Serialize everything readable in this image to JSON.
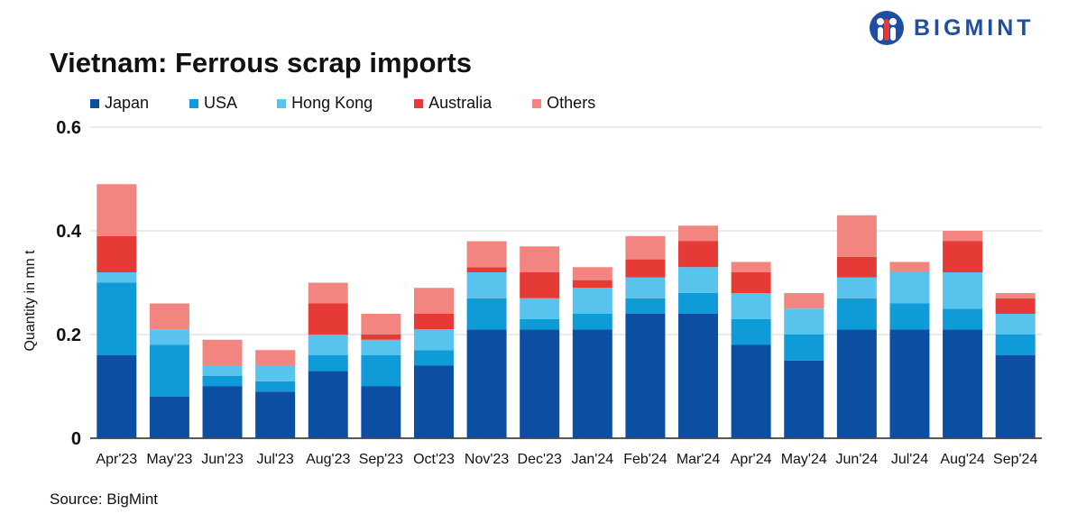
{
  "title": "Vietnam: Ferrous scrap imports",
  "brand": {
    "name": "BIGMINT",
    "color": "#1f4ea3"
  },
  "source": "Source: BigMint",
  "chart_data": {
    "type": "bar",
    "stacked": true,
    "categories": [
      "Apr'23",
      "May'23",
      "Jun'23",
      "Jul'23",
      "Aug'23",
      "Sep'23",
      "Oct'23",
      "Nov'23",
      "Dec'23",
      "Jan'24",
      "Feb'24",
      "Mar'24",
      "Apr'24",
      "May'24",
      "Jun'24",
      "Jul'24",
      "Aug'24",
      "Sep'24"
    ],
    "series": [
      {
        "name": "Japan",
        "color": "#0b4ea2",
        "values": [
          0.16,
          0.08,
          0.1,
          0.09,
          0.13,
          0.1,
          0.14,
          0.21,
          0.21,
          0.21,
          0.24,
          0.24,
          0.18,
          0.15,
          0.21,
          0.21,
          0.21,
          0.16
        ]
      },
      {
        "name": "USA",
        "color": "#0f9bd7",
        "values": [
          0.14,
          0.1,
          0.02,
          0.02,
          0.03,
          0.06,
          0.03,
          0.06,
          0.02,
          0.03,
          0.03,
          0.04,
          0.05,
          0.05,
          0.06,
          0.05,
          0.04,
          0.04
        ]
      },
      {
        "name": "Hong Kong",
        "color": "#58c3ec",
        "values": [
          0.02,
          0.03,
          0.02,
          0.03,
          0.04,
          0.03,
          0.04,
          0.05,
          0.04,
          0.05,
          0.04,
          0.05,
          0.05,
          0.05,
          0.04,
          0.06,
          0.07,
          0.04
        ]
      },
      {
        "name": "Australia",
        "color": "#e63a36",
        "values": [
          0.07,
          0.0,
          0.0,
          0.0,
          0.06,
          0.01,
          0.03,
          0.01,
          0.05,
          0.015,
          0.035,
          0.05,
          0.04,
          0.0,
          0.04,
          0.0,
          0.06,
          0.03
        ]
      },
      {
        "name": "Others",
        "color": "#f28580",
        "values": [
          0.1,
          0.05,
          0.05,
          0.03,
          0.04,
          0.04,
          0.05,
          0.05,
          0.05,
          0.025,
          0.045,
          0.03,
          0.02,
          0.03,
          0.08,
          0.02,
          0.02,
          0.01
        ]
      }
    ],
    "ylabel": "Quantity in mn t",
    "ylim": [
      0,
      0.6
    ],
    "yticks": [
      "0",
      "0.2",
      "0.4",
      "0.6"
    ],
    "ytick_values": [
      0,
      0.2,
      0.4,
      0.6
    ],
    "grid": true,
    "legend_position": "top-left"
  }
}
